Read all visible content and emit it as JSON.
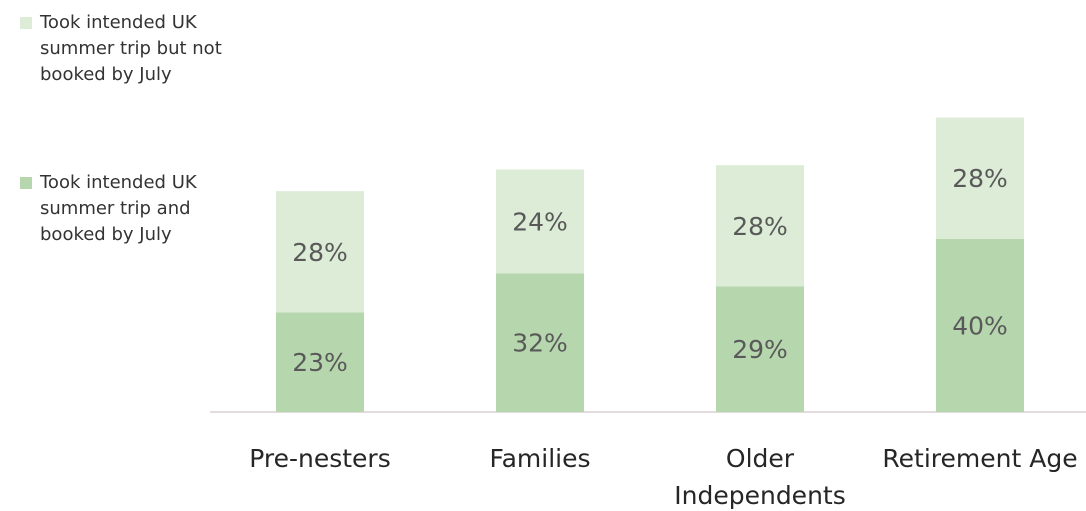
{
  "chart_data": {
    "type": "stacked_bar",
    "categories": [
      "Pre-nesters",
      "Families",
      "Older Independents",
      "Retirement Age"
    ],
    "series": [
      {
        "name": "Took intended UK summer trip and booked by July",
        "color": "#b6d7ae",
        "values": [
          23,
          32,
          29,
          40
        ],
        "value_labels": [
          "23%",
          "32%",
          "29%",
          "40%"
        ]
      },
      {
        "name": "Took intended UK summer trip but not booked by July",
        "color": "#dcecd7",
        "values": [
          28,
          24,
          28,
          28
        ],
        "value_labels": [
          "28%",
          "24%",
          "28%",
          "28%"
        ]
      }
    ]
  }
}
